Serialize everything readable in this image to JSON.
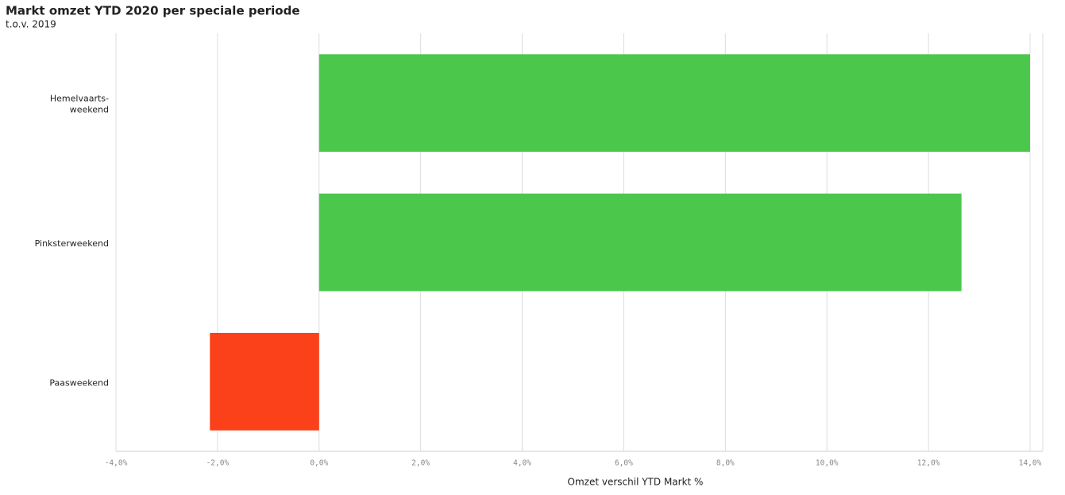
{
  "chart_data": {
    "type": "bar",
    "orientation": "horizontal",
    "title": "Markt omzet YTD 2020 per speciale periode",
    "subtitle": "t.o.v. 2019",
    "x_label": "Omzet verschil YTD Markt %",
    "categories": [
      "Hemelvaarts-\nweekend",
      "Pinksterweekend",
      "Paasweekend"
    ],
    "values": [
      14.0,
      12.65,
      -2.15
    ],
    "colors": [
      "#4bc84b",
      "#4bc84b",
      "#fb4119"
    ],
    "xlim": [
      -4.0,
      14.0
    ],
    "xticks": [
      {
        "value": -4,
        "label": "-4,0%"
      },
      {
        "value": -2,
        "label": "-2,0%"
      },
      {
        "value": 0,
        "label": "0,0%"
      },
      {
        "value": 2,
        "label": "2,0%"
      },
      {
        "value": 4,
        "label": "4,0%"
      },
      {
        "value": 6,
        "label": "6,0%"
      },
      {
        "value": 8,
        "label": "8,0%"
      },
      {
        "value": 10,
        "label": "10,0%"
      },
      {
        "value": 12,
        "label": "12,0%"
      },
      {
        "value": 14,
        "label": "14,0%"
      }
    ],
    "grid": true
  }
}
